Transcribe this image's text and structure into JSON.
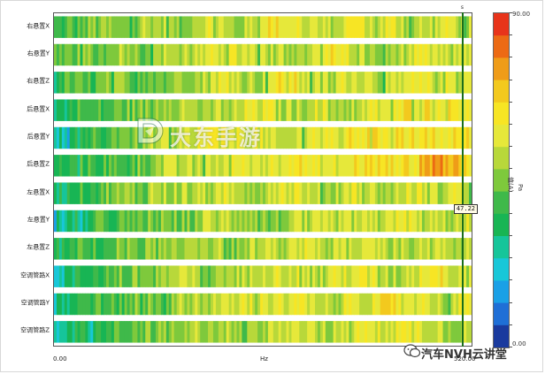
{
  "chart_data": {
    "type": "heatmap",
    "rows": [
      "右悬置X",
      "右悬置Y",
      "右悬置Z",
      "后悬置X",
      "后悬置Y",
      "后悬置Z",
      "左悬置X",
      "左悬置Y",
      "左悬置Z",
      "空调管路X",
      "空调管路Y",
      "空调管路Z"
    ],
    "x_range": [
      0,
      520
    ],
    "xlim_labels": [
      "0.00",
      "520.00"
    ],
    "xlabel": "Hz",
    "colorbar": {
      "min": 0,
      "max": 90,
      "max_label": "90.00",
      "min_label": "0.00",
      "label": "值(A)",
      "unit": "Pa",
      "colors": [
        "#1a3a9e",
        "#1f6fd6",
        "#1aa0e6",
        "#18c7d8",
        "#16c59a",
        "#18b554",
        "#3fb94a",
        "#7ec93c",
        "#b8d83a",
        "#e6e83a",
        "#f7e524",
        "#f3c91e",
        "#ef9c18",
        "#ec6a14",
        "#e8341a"
      ]
    },
    "cursor": {
      "x": 510,
      "top_label": "s",
      "readout": "47.22",
      "readout_row": "左悬置Y"
    },
    "row_profiles": [
      {
        "base": [
          6,
          6,
          6,
          7,
          7,
          7,
          7,
          7,
          8,
          8,
          8,
          7,
          7,
          8,
          9,
          9,
          8,
          7,
          8,
          9,
          10,
          10,
          9,
          9,
          9,
          8,
          8,
          9,
          10,
          9,
          8,
          9,
          9,
          8,
          8,
          8,
          9,
          9,
          8,
          8
        ],
        "noise": 1
      },
      {
        "base": [
          6,
          6,
          7,
          7,
          7,
          7,
          8,
          8,
          7,
          7,
          8,
          8,
          8,
          8,
          8,
          9,
          9,
          9,
          8,
          8,
          8,
          9,
          8,
          8,
          8,
          9,
          10,
          9,
          8,
          8,
          7,
          7,
          8,
          8,
          9,
          9,
          8,
          8,
          9,
          9
        ],
        "noise": 1
      },
      {
        "base": [
          5,
          6,
          6,
          6,
          6,
          7,
          7,
          7,
          7,
          7,
          7,
          7,
          8,
          8,
          8,
          9,
          9,
          9,
          8,
          8,
          9,
          10,
          10,
          9,
          8,
          8,
          8,
          9,
          9,
          9,
          8,
          8,
          8,
          9,
          9,
          9,
          8,
          9,
          9,
          9
        ],
        "noise": 1
      },
      {
        "base": [
          5,
          5,
          6,
          6,
          6,
          6,
          7,
          7,
          7,
          7,
          8,
          8,
          8,
          8,
          7,
          8,
          8,
          8,
          9,
          9,
          9,
          8,
          8,
          8,
          9,
          9,
          8,
          8,
          8,
          9,
          9,
          9,
          9,
          10,
          10,
          10,
          10,
          10,
          10,
          10
        ],
        "noise": 1
      },
      {
        "base": [
          4,
          4,
          5,
          5,
          6,
          6,
          7,
          7,
          7,
          8,
          8,
          8,
          8,
          9,
          9,
          9,
          9,
          9,
          9,
          9,
          8,
          8,
          8,
          9,
          9,
          9,
          9,
          9,
          10,
          10,
          10,
          10,
          10,
          10,
          10,
          10,
          10,
          10,
          10,
          10
        ],
        "noise": 1
      },
      {
        "base": [
          5,
          5,
          6,
          6,
          6,
          6,
          6,
          7,
          7,
          7,
          8,
          8,
          8,
          8,
          8,
          9,
          9,
          9,
          10,
          9,
          9,
          9,
          10,
          10,
          9,
          9,
          9,
          9,
          10,
          10,
          10,
          10,
          10,
          10,
          11,
          12,
          12,
          12,
          10,
          10
        ],
        "noise": 1
      },
      {
        "base": [
          5,
          5,
          6,
          6,
          6,
          7,
          7,
          7,
          7,
          8,
          8,
          8,
          8,
          8,
          8,
          8,
          9,
          8,
          8,
          8,
          9,
          9,
          9,
          9,
          8,
          8,
          8,
          9,
          9,
          8,
          8,
          8,
          8,
          9,
          9,
          8,
          8,
          9,
          9,
          8
        ],
        "noise": 1
      },
      {
        "base": [
          4,
          4,
          5,
          5,
          6,
          6,
          6,
          6,
          7,
          7,
          7,
          7,
          7,
          7,
          8,
          8,
          8,
          8,
          8,
          7,
          7,
          7,
          8,
          8,
          8,
          8,
          8,
          8,
          8,
          8,
          8,
          9,
          9,
          9,
          8,
          8,
          8,
          8,
          8,
          9
        ],
        "noise": 1
      },
      {
        "base": [
          5,
          5,
          6,
          6,
          6,
          6,
          7,
          7,
          7,
          7,
          7,
          7,
          8,
          8,
          8,
          8,
          7,
          7,
          8,
          8,
          8,
          8,
          8,
          9,
          9,
          8,
          8,
          8,
          8,
          9,
          9,
          8,
          8,
          8,
          8,
          9,
          9,
          9,
          8,
          8
        ],
        "noise": 1
      },
      {
        "base": [
          4,
          4,
          5,
          5,
          6,
          6,
          7,
          7,
          7,
          7,
          8,
          8,
          8,
          8,
          7,
          7,
          8,
          8,
          8,
          9,
          9,
          9,
          9,
          9,
          8,
          8,
          9,
          9,
          9,
          9,
          9,
          8,
          8,
          9,
          9,
          10,
          10,
          9,
          9,
          9
        ],
        "noise": 1
      },
      {
        "base": [
          5,
          5,
          5,
          6,
          6,
          6,
          6,
          7,
          7,
          7,
          7,
          7,
          8,
          8,
          8,
          8,
          8,
          9,
          9,
          9,
          9,
          9,
          9,
          9,
          8,
          8,
          8,
          9,
          9,
          9,
          9,
          10,
          10,
          9,
          9,
          9,
          8,
          8,
          9,
          9
        ],
        "noise": 1
      },
      {
        "base": [
          4,
          4,
          5,
          5,
          5,
          6,
          6,
          6,
          7,
          7,
          7,
          7,
          7,
          8,
          8,
          8,
          8,
          7,
          7,
          8,
          8,
          9,
          9,
          9,
          9,
          8,
          8,
          8,
          9,
          9,
          9,
          9,
          9,
          9,
          9,
          9,
          8,
          8,
          8,
          8
        ],
        "noise": 1
      }
    ]
  },
  "watermark": {
    "text": "大东手游"
  },
  "footer": {
    "text": "汽车NVH云讲堂"
  },
  "icons": {
    "watermark_logo": "d-logo-icon",
    "footer_logo": "wechat-icon"
  }
}
